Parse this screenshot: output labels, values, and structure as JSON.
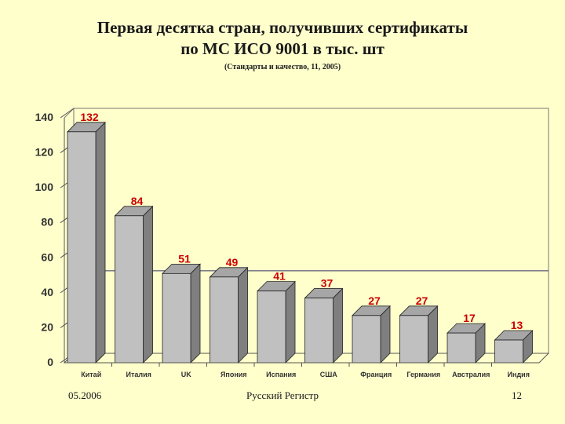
{
  "slide": {
    "title_line1": "Первая десятка стран, получивших сертификаты",
    "title_line2": "по МС ИСО 9001 в тыс. шт",
    "subtitle": "(Стандарты и качество, 11, 2005)",
    "footer_date": "05.2006",
    "footer_org": "Русский Регистр",
    "footer_page": "12"
  },
  "chart_data": {
    "type": "bar",
    "categories": [
      "Китай",
      "Италия",
      "UK",
      "Япония",
      "Испания",
      "США",
      "Франция",
      "Германия",
      "Австралия",
      "Индия"
    ],
    "values": [
      132,
      84,
      51,
      49,
      41,
      37,
      27,
      27,
      17,
      13
    ],
    "value_labels": [
      "132",
      "84",
      "51",
      "49",
      "41",
      "37",
      "27",
      "27",
      "17",
      "13"
    ],
    "yticks": [
      "0",
      "20",
      "40",
      "60",
      "80",
      "100",
      "120",
      "140"
    ],
    "ylim": [
      0,
      140
    ],
    "grid": false,
    "three_d": true,
    "colors": {
      "bar_front": "#c0c0c0",
      "bar_side": "#7f7f7f",
      "bar_top": "#a6a6a6",
      "data_label": "#cc0000",
      "reference_line": "#333366",
      "axis_text": "#333333"
    }
  }
}
